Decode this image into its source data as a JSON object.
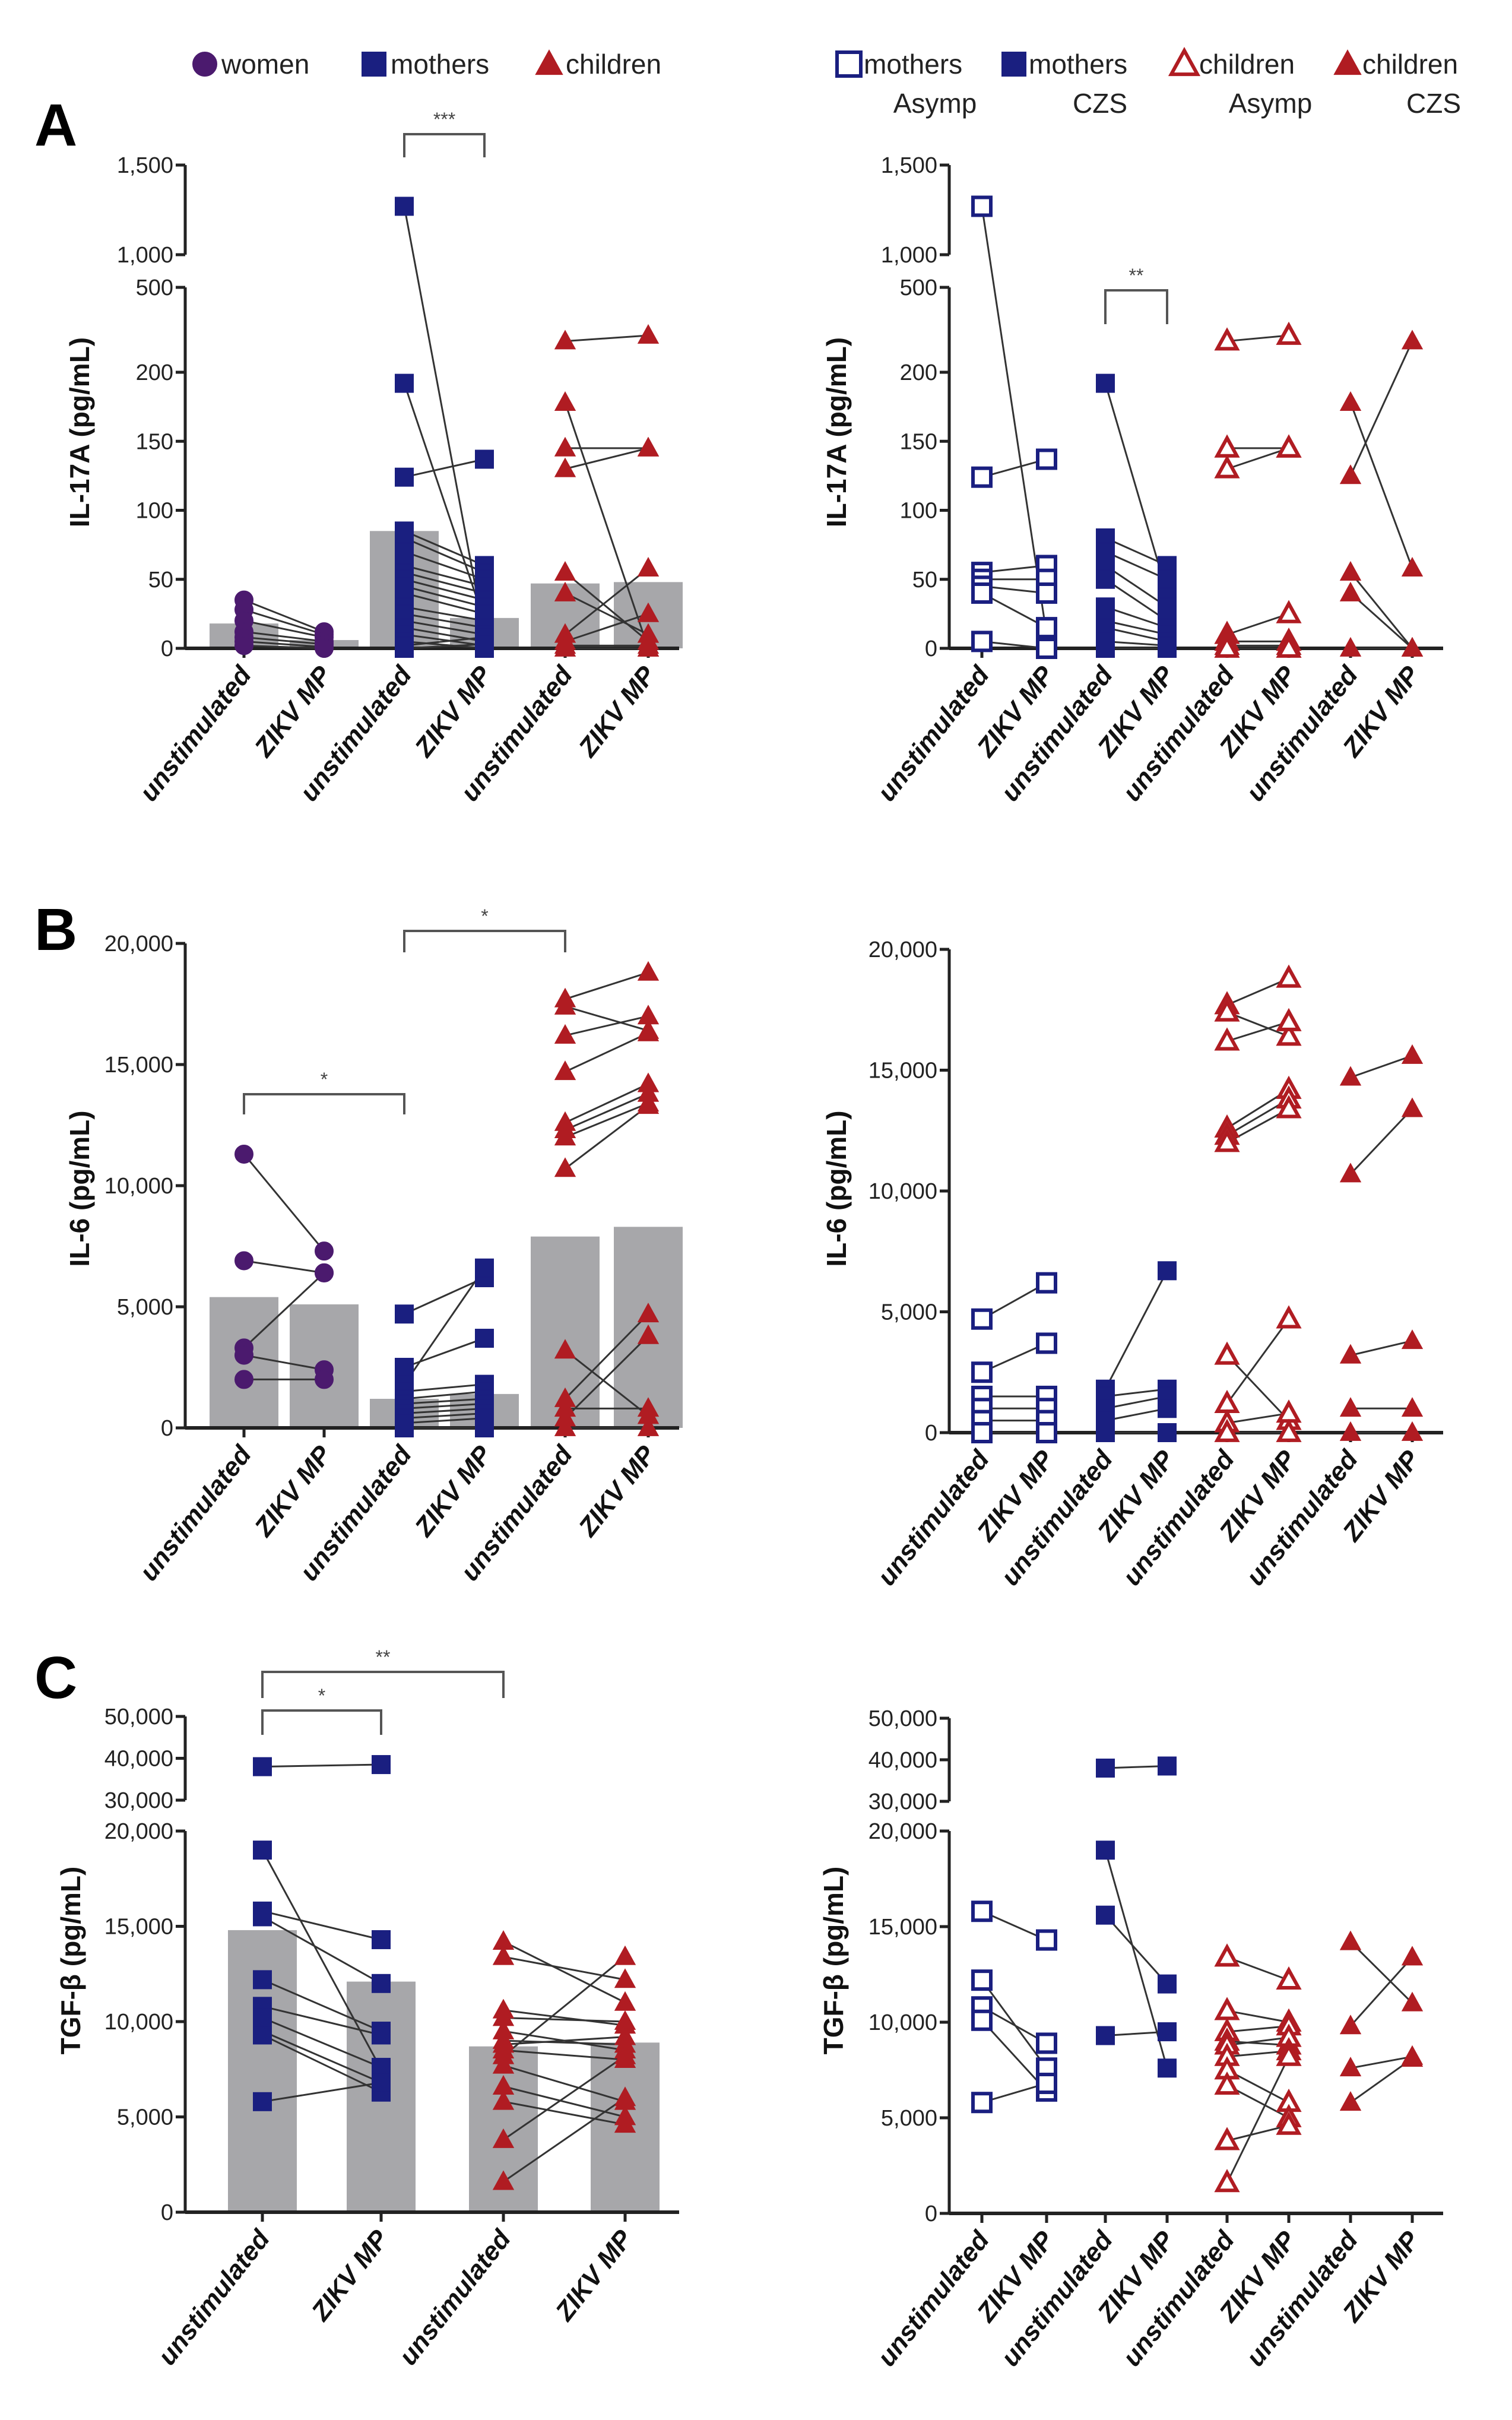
{
  "legend_left": [
    {
      "label": "women",
      "marker": "circle",
      "filled": true,
      "color": "#4b1a6e"
    },
    {
      "label": "mothers",
      "marker": "square",
      "filled": true,
      "color": "#1a1f80"
    },
    {
      "label": "children",
      "marker": "triangle",
      "filled": true,
      "color": "#b01c22"
    }
  ],
  "legend_right": [
    {
      "label": "mothers",
      "sub": "Asymp",
      "marker": "square",
      "filled": false,
      "color": "#1a1f80"
    },
    {
      "label": "mothers",
      "sub": "CZS",
      "marker": "square",
      "filled": true,
      "color": "#1a1f80"
    },
    {
      "label": "children",
      "sub": "Asymp",
      "marker": "triangle",
      "filled": false,
      "color": "#b01c22"
    },
    {
      "label": "children",
      "sub": "CZS",
      "marker": "triangle",
      "filled": true,
      "color": "#b01c22"
    }
  ],
  "panel_letters": [
    "A",
    "B",
    "C"
  ],
  "colors": {
    "bar": "#a7a7aa",
    "line": "#333333",
    "axis": "#222222"
  },
  "chart_data": [
    {
      "type": "scatter",
      "panel": "A",
      "side": "left",
      "ylabel": "IL-17A (pg/mL)",
      "yticks": [
        0,
        50,
        100,
        150,
        200,
        500,
        1000,
        1500
      ],
      "ytick_labels": [
        "0",
        "50",
        "100",
        "150",
        "200",
        "500",
        "1,000",
        "1,500"
      ],
      "categories": [
        "unstimulated",
        "ZIKV MP",
        "unstimulated",
        "ZIKV MP",
        "unstimulated",
        "ZIKV MP"
      ],
      "bars": true,
      "groups": [
        {
          "name": "women",
          "marker": "circle",
          "filled": true,
          "color": "#4b1a6e",
          "unstimulated": [
            35,
            28,
            20,
            12,
            8,
            5,
            2
          ],
          "zikv_mp": [
            12,
            10,
            8,
            5,
            3,
            1,
            0
          ],
          "means": [
            18,
            6
          ]
        },
        {
          "name": "mothers",
          "marker": "square",
          "filled": true,
          "color": "#1a1f80",
          "unstimulated": [
            1270,
            192,
            124,
            85,
            80,
            70,
            60,
            55,
            50,
            45,
            40,
            30,
            25,
            20,
            15,
            10,
            5,
            2,
            0
          ],
          "zikv_mp": [
            10,
            20,
            137,
            60,
            55,
            50,
            45,
            40,
            35,
            30,
            25,
            20,
            15,
            10,
            5,
            2,
            0,
            8,
            3
          ],
          "means": [
            85,
            22
          ]
        },
        {
          "name": "children",
          "marker": "triangle",
          "filled": true,
          "color": "#b01c22",
          "unstimulated": [
            310,
            178,
            145,
            130,
            55,
            40,
            10,
            5,
            2,
            0
          ],
          "zikv_mp": [
            330,
            0,
            145,
            145,
            5,
            10,
            58,
            25,
            2,
            0
          ],
          "means": [
            47,
            48
          ]
        }
      ],
      "significance": [
        {
          "from": 2,
          "to": 3,
          "label": "***"
        }
      ]
    },
    {
      "type": "scatter",
      "panel": "A",
      "side": "right",
      "ylabel": "IL-17A (pg/mL)",
      "yticks": [
        0,
        50,
        100,
        150,
        200,
        500,
        1000,
        1500
      ],
      "ytick_labels": [
        "0",
        "50",
        "100",
        "150",
        "200",
        "500",
        "1,000",
        "1,500"
      ],
      "categories": [
        "unstimulated",
        "ZIKV MP",
        "unstimulated",
        "ZIKV MP",
        "unstimulated",
        "ZIKV MP",
        "unstimulated",
        "ZIKV MP"
      ],
      "bars": false,
      "groups": [
        {
          "name": "mothers Asymp",
          "marker": "square",
          "filled": false,
          "color": "#1a1f80",
          "unstimulated": [
            1270,
            124,
            55,
            50,
            45,
            40,
            5
          ],
          "zikv_mp": [
            10,
            137,
            60,
            50,
            40,
            15,
            0
          ]
        },
        {
          "name": "mothers CZS",
          "marker": "square",
          "filled": true,
          "color": "#1a1f80",
          "unstimulated": [
            192,
            80,
            70,
            60,
            50,
            30,
            20,
            15,
            5,
            0
          ],
          "zikv_mp": [
            40,
            60,
            50,
            30,
            20,
            15,
            10,
            5,
            2,
            0
          ]
        },
        {
          "name": "children Asymp",
          "marker": "triangle",
          "filled": false,
          "color": "#b01c22",
          "unstimulated": [
            310,
            145,
            130,
            10,
            5,
            2,
            0
          ],
          "zikv_mp": [
            330,
            145,
            145,
            25,
            5,
            2,
            0
          ]
        },
        {
          "name": "children CZS",
          "marker": "triangle",
          "filled": true,
          "color": "#b01c22",
          "unstimulated": [
            178,
            125,
            55,
            40,
            0
          ],
          "zikv_mp": [
            58,
            310,
            0,
            0,
            0
          ]
        }
      ],
      "significance": [
        {
          "from": 2,
          "to": 3,
          "label": "**"
        }
      ]
    },
    {
      "type": "scatter",
      "panel": "B",
      "side": "left",
      "ylabel": "IL-6 (pg/mL)",
      "yticks": [
        0,
        5000,
        10000,
        15000,
        20000
      ],
      "ytick_labels": [
        "0",
        "5,000",
        "10,000",
        "15,000",
        "20,000"
      ],
      "categories": [
        "unstimulated",
        "ZIKV MP",
        "unstimulated",
        "ZIKV MP",
        "unstimulated",
        "ZIKV MP"
      ],
      "bars": true,
      "groups": [
        {
          "name": "women",
          "marker": "circle",
          "filled": true,
          "color": "#4b1a6e",
          "unstimulated": [
            11300,
            6900,
            3300,
            3000,
            2000
          ],
          "zikv_mp": [
            7300,
            6400,
            6400,
            2400,
            2000
          ],
          "means": [
            5400,
            5100
          ]
        },
        {
          "name": "mothers",
          "marker": "square",
          "filled": true,
          "color": "#1a1f80",
          "unstimulated": [
            4700,
            2500,
            1800,
            1500,
            1200,
            1000,
            800,
            600,
            400,
            200,
            0
          ],
          "zikv_mp": [
            6200,
            3700,
            6600,
            1800,
            1500,
            1200,
            1000,
            800,
            600,
            400,
            0
          ],
          "means": [
            1200,
            1400
          ]
        },
        {
          "name": "children",
          "marker": "triangle",
          "filled": true,
          "color": "#b01c22",
          "unstimulated": [
            17700,
            17400,
            16200,
            14700,
            12600,
            12300,
            12000,
            10700,
            3200,
            1200,
            800,
            400,
            0
          ],
          "zikv_mp": [
            18800,
            16400,
            17000,
            16300,
            14200,
            13800,
            13400,
            13300,
            500,
            4700,
            800,
            3800,
            0
          ],
          "means": [
            7900,
            8300
          ]
        }
      ],
      "significance": [
        {
          "from": 0,
          "to": 2,
          "label": "*"
        },
        {
          "from": 2,
          "to": 4,
          "label": "*"
        }
      ]
    },
    {
      "type": "scatter",
      "panel": "B",
      "side": "right",
      "ylabel": "IL-6 (pg/mL)",
      "yticks": [
        0,
        5000,
        10000,
        15000,
        20000
      ],
      "ytick_labels": [
        "0",
        "5,000",
        "10,000",
        "15,000",
        "20,000"
      ],
      "categories": [
        "unstimulated",
        "ZIKV MP",
        "unstimulated",
        "ZIKV MP",
        "unstimulated",
        "ZIKV MP",
        "unstimulated",
        "ZIKV MP"
      ],
      "bars": false,
      "groups": [
        {
          "name": "mothers Asymp",
          "marker": "square",
          "filled": false,
          "color": "#1a1f80",
          "unstimulated": [
            4700,
            2500,
            1500,
            1000,
            500,
            0
          ],
          "zikv_mp": [
            6200,
            3700,
            1500,
            1000,
            500,
            0
          ]
        },
        {
          "name": "mothers CZS",
          "marker": "square",
          "filled": true,
          "color": "#1a1f80",
          "unstimulated": [
            1800,
            1500,
            1000,
            500,
            0
          ],
          "zikv_mp": [
            6700,
            1800,
            1500,
            1000,
            0
          ]
        },
        {
          "name": "children Asymp",
          "marker": "triangle",
          "filled": false,
          "color": "#b01c22",
          "unstimulated": [
            17700,
            17400,
            16200,
            12600,
            12300,
            12000,
            3200,
            1200,
            400,
            0
          ],
          "zikv_mp": [
            18800,
            16400,
            17000,
            14200,
            13800,
            13400,
            500,
            4700,
            800,
            0
          ]
        },
        {
          "name": "children CZS",
          "marker": "triangle",
          "filled": true,
          "color": "#b01c22",
          "unstimulated": [
            14700,
            10700,
            3200,
            1000,
            0
          ],
          "zikv_mp": [
            15600,
            13400,
            3800,
            1000,
            0
          ]
        }
      ],
      "significance": []
    },
    {
      "type": "scatter",
      "panel": "C",
      "side": "left",
      "ylabel": "TGF-β (pg/mL)",
      "yticks": [
        0,
        5000,
        10000,
        15000,
        20000,
        30000,
        40000,
        50000
      ],
      "ytick_labels": [
        "0",
        "5,000",
        "10,000",
        "15,000",
        "20,000",
        "30,000",
        "40,000",
        "50,000"
      ],
      "categories": [
        "unstimulated",
        "ZIKV MP",
        "unstimulated",
        "ZIKV MP"
      ],
      "bars": true,
      "groups": [
        {
          "name": "mothers",
          "marker": "square",
          "filled": true,
          "color": "#1a1f80",
          "unstimulated": [
            38000,
            19000,
            15800,
            15500,
            12200,
            10800,
            10200,
            9500,
            9300,
            5800
          ],
          "zikv_mp": [
            38500,
            7500,
            14300,
            12000,
            9500,
            9300,
            7600,
            6800,
            6300,
            6800
          ],
          "means": [
            14800,
            12100
          ]
        },
        {
          "name": "children",
          "marker": "triangle",
          "filled": true,
          "color": "#b01c22",
          "unstimulated": [
            14200,
            13400,
            10600,
            10200,
            9500,
            9000,
            8800,
            8500,
            8200,
            7700,
            6600,
            5800,
            3800,
            1600
          ],
          "zikv_mp": [
            11000,
            12200,
            9800,
            10000,
            8500,
            8800,
            9200,
            8000,
            13400,
            5800,
            5000,
            4600,
            8200,
            6000
          ],
          "means": [
            8700,
            8900
          ]
        }
      ],
      "significance": [
        {
          "from": 0,
          "to": 1,
          "label": "*"
        },
        {
          "from": 0,
          "to": 2,
          "label": "**"
        }
      ]
    },
    {
      "type": "scatter",
      "panel": "C",
      "side": "right",
      "ylabel": "TGF-β (pg/mL)",
      "yticks": [
        0,
        5000,
        10000,
        15000,
        20000,
        30000,
        40000,
        50000
      ],
      "ytick_labels": [
        "0",
        "5,000",
        "10,000",
        "15,000",
        "20,000",
        "30,000",
        "40,000",
        "50,000"
      ],
      "categories": [
        "unstimulated",
        "ZIKV MP",
        "unstimulated",
        "ZIKV MP",
        "unstimulated",
        "ZIKV MP",
        "unstimulated",
        "ZIKV MP"
      ],
      "bars": false,
      "groups": [
        {
          "name": "mothers Asymp",
          "marker": "square",
          "filled": false,
          "color": "#1a1f80",
          "unstimulated": [
            15800,
            12200,
            10800,
            10100,
            5800
          ],
          "zikv_mp": [
            14300,
            7600,
            8900,
            6400,
            6800
          ]
        },
        {
          "name": "mothers CZS",
          "marker": "square",
          "filled": true,
          "color": "#1a1f80",
          "unstimulated": [
            38000,
            19000,
            15600,
            9300
          ],
          "zikv_mp": [
            38500,
            7600,
            12000,
            9500
          ]
        },
        {
          "name": "children Asymp",
          "marker": "triangle",
          "filled": false,
          "color": "#b01c22",
          "unstimulated": [
            13400,
            10600,
            9500,
            9000,
            8800,
            8200,
            7500,
            6700,
            3800,
            1600
          ],
          "zikv_mp": [
            12200,
            10000,
            9800,
            8800,
            9200,
            8500,
            5800,
            5000,
            4600,
            8200
          ]
        },
        {
          "name": "children CZS",
          "marker": "triangle",
          "filled": true,
          "color": "#b01c22",
          "unstimulated": [
            14200,
            9800,
            7600,
            5800
          ],
          "zikv_mp": [
            11000,
            13400,
            8200,
            8100
          ]
        }
      ],
      "significance": []
    }
  ]
}
